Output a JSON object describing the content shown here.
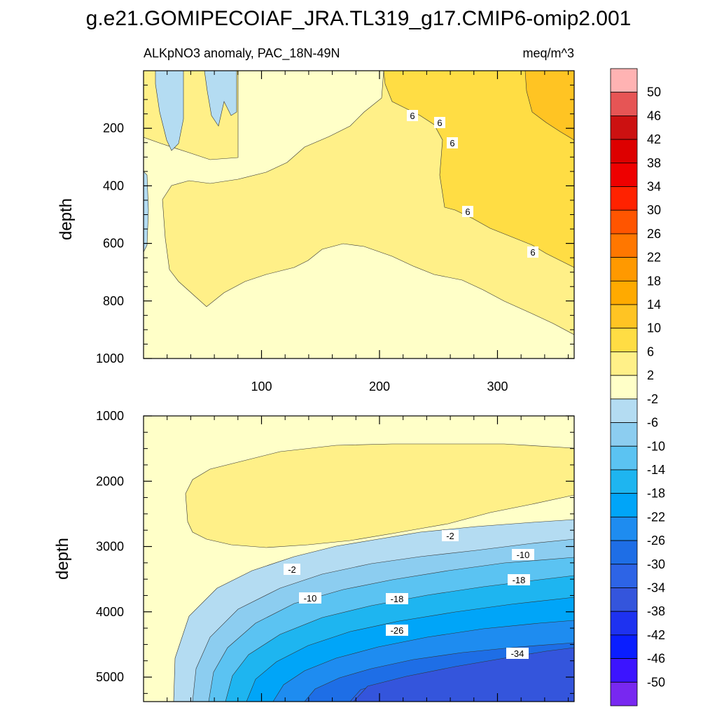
{
  "figure": {
    "title": "g.e21.GOMIPECOIAF_JRA.TL319_g17.CMIP6-omip2.001",
    "subtitle_left": "ALKpNO3 anomaly, PAC_18N-49N",
    "subtitle_right": "meq/m^3"
  },
  "chart_data": [
    {
      "type": "heatmap",
      "panel": "upper",
      "variable": "ALKpNO3 anomaly",
      "region": "PAC_18N-49N",
      "units": "meq/m^3",
      "xlabel": "",
      "ylabel": "depth",
      "x_range": [
        0,
        365
      ],
      "y_range": [
        0,
        1000
      ],
      "y_inverted": true,
      "x_ticks": [
        100,
        200,
        300
      ],
      "y_ticks": [
        200,
        400,
        600,
        800,
        1000
      ],
      "contour_labels": [
        "6",
        "6",
        "6",
        "6",
        "6"
      ],
      "regions": [
        {
          "description": "background",
          "range": "-2 to 2"
        },
        {
          "description": "mid-depth band 2 to 6, centered near 500-700 m",
          "range": "2 to 6"
        },
        {
          "description": "upper right, late years",
          "range": "6 to 10"
        },
        {
          "description": "small patches at top-left and left edge",
          "range": "-6 to -2"
        }
      ]
    },
    {
      "type": "heatmap",
      "panel": "lower",
      "variable": "ALKpNO3 anomaly",
      "region": "PAC_18N-49N",
      "units": "meq/m^3",
      "xlabel": "",
      "ylabel": "depth",
      "x_range": [
        0,
        365
      ],
      "y_range": [
        1000,
        5375
      ],
      "y_inverted": true,
      "y_ticks": [
        1000,
        2000,
        3000,
        4000,
        5000
      ],
      "contour_labels": [
        "-2",
        "-2",
        "-10",
        "-10",
        "-18",
        "-18",
        "-26",
        "-34"
      ],
      "regions": [
        {
          "description": "background",
          "range": "-2 to 2"
        },
        {
          "description": "intermediate depth positive lobe 1500-2600 m",
          "range": "2 to 6"
        },
        {
          "description": "deep negative anomaly increasing with time and depth",
          "range": "-38 to -2"
        }
      ]
    }
  ],
  "colorbar": {
    "labels": [
      "50",
      "46",
      "42",
      "38",
      "34",
      "30",
      "26",
      "22",
      "18",
      "14",
      "10",
      "6",
      "2",
      "-2",
      "-6",
      "-10",
      "-14",
      "-18",
      "-22",
      "-26",
      "-30",
      "-34",
      "-38",
      "-42",
      "-46",
      "-50"
    ],
    "colors": [
      "#ffb3b3",
      "#e65555",
      "#cc1111",
      "#dd0000",
      "#ee0000",
      "#ff2200",
      "#ff5500",
      "#ff7700",
      "#ff9900",
      "#ffaa00",
      "#ffc423",
      "#ffdd44",
      "#fff088",
      "#ffffc8",
      "#b4dcf2",
      "#8ccdf0",
      "#5bc3f2",
      "#1eb5f0",
      "#00a5f8",
      "#1e8cf0",
      "#1e6ee6",
      "#2d64e6",
      "#3455dc",
      "#1e32f0",
      "#0a1eff",
      "#3c14ff",
      "#7828f0"
    ]
  }
}
